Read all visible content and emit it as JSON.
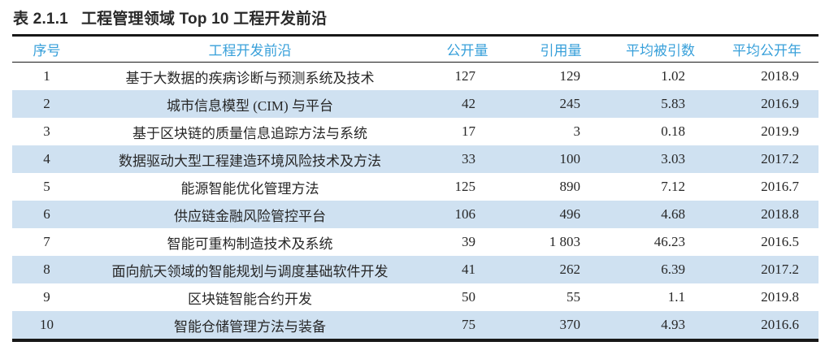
{
  "title": {
    "number": "表 2.1.1",
    "text": "工程管理领域 Top 10 工程开发前沿"
  },
  "chart_data": {
    "type": "table",
    "title": "表 2.1.1 工程管理领域 Top 10 工程开发前沿",
    "columns": [
      "序号",
      "工程开发前沿",
      "公开量",
      "引用量",
      "平均被引数",
      "平均公开年"
    ],
    "rows": [
      [
        "1",
        "基于大数据的疾病诊断与预测系统及技术",
        "127",
        "129",
        "1.02",
        "2018.9"
      ],
      [
        "2",
        "城市信息模型 (CIM) 与平台",
        "42",
        "245",
        "5.83",
        "2016.9"
      ],
      [
        "3",
        "基于区块链的质量信息追踪方法与系统",
        "17",
        "3",
        "0.18",
        "2019.9"
      ],
      [
        "4",
        "数据驱动大型工程建造环境风险技术及方法",
        "33",
        "100",
        "3.03",
        "2017.2"
      ],
      [
        "5",
        "能源智能优化管理方法",
        "125",
        "890",
        "7.12",
        "2016.7"
      ],
      [
        "6",
        "供应链金融风险管控平台",
        "106",
        "496",
        "4.68",
        "2018.8"
      ],
      [
        "7",
        "智能可重构制造技术及系统",
        "39",
        "1 803",
        "46.23",
        "2016.5"
      ],
      [
        "8",
        "面向航天领域的智能规划与调度基础软件开发",
        "41",
        "262",
        "6.39",
        "2017.2"
      ],
      [
        "9",
        "区块链智能合约开发",
        "50",
        "55",
        "1.1",
        "2019.8"
      ],
      [
        "10",
        "智能仓储管理方法与装备",
        "75",
        "370",
        "4.93",
        "2016.6"
      ]
    ]
  },
  "colors": {
    "header_text": "#38a0da",
    "row_stripe": "#cfe1f1",
    "rule": "#181818",
    "body_text": "#272727",
    "title_text": "#2a2a2a"
  }
}
